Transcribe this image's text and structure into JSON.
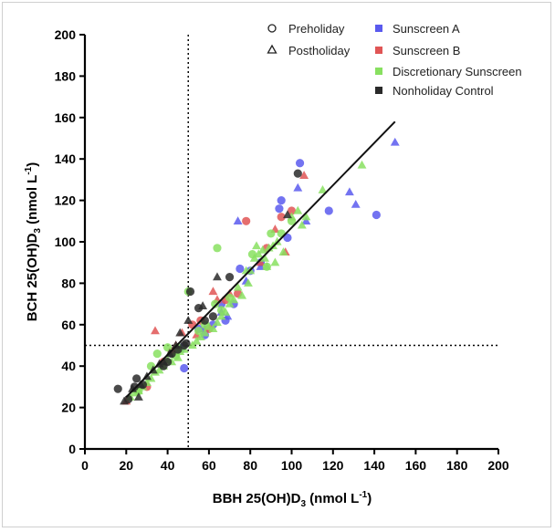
{
  "chart_data": {
    "type": "scatter",
    "xlabel_main": "BBH 25(OH)D",
    "xlabel_sub": "3",
    "xlabel_tail": " (nmol L",
    "xlabel_sup": "-1",
    "xlabel_end": ")",
    "ylabel_main": "BCH 25(OH)D",
    "ylabel_sub": "3",
    "ylabel_tail": " (nmol L",
    "ylabel_sup": "-1",
    "ylabel_end": ")",
    "xlim": [
      0,
      200
    ],
    "ylim": [
      0,
      200
    ],
    "xticks": [
      0,
      20,
      40,
      60,
      80,
      100,
      120,
      140,
      160,
      180,
      200
    ],
    "yticks": [
      0,
      20,
      40,
      60,
      80,
      100,
      120,
      140,
      160,
      180,
      200
    ],
    "grid": false,
    "legend_position": "top-right",
    "legend_shapes": [
      {
        "label": "Preholiday",
        "marker": "circle"
      },
      {
        "label": "Postholiday",
        "marker": "triangle"
      }
    ],
    "reference_lines": {
      "x": 50,
      "y": 50
    },
    "fit_line": {
      "x": [
        20,
        150
      ],
      "y": [
        25,
        158
      ]
    },
    "series": [
      {
        "name": "Sunscreen A",
        "color": "#5a5aee",
        "pre": [
          [
            48,
            39
          ],
          [
            58,
            55
          ],
          [
            72,
            70
          ],
          [
            75,
            87
          ],
          [
            80,
            86
          ],
          [
            95,
            120
          ],
          [
            104,
            138
          ],
          [
            118,
            115
          ],
          [
            141,
            113
          ],
          [
            94,
            116
          ],
          [
            68,
            62
          ],
          [
            62,
            60
          ],
          [
            55,
            58
          ],
          [
            47,
            49
          ],
          [
            66,
            70
          ],
          [
            85,
            90
          ],
          [
            98,
            102
          ]
        ],
        "post": [
          [
            150,
            148
          ],
          [
            128,
            124
          ],
          [
            131,
            118
          ],
          [
            103,
            126
          ],
          [
            107,
            110
          ],
          [
            74,
            110
          ],
          [
            78,
            81
          ],
          [
            66,
            66
          ],
          [
            58,
            58
          ],
          [
            46,
            48
          ],
          [
            85,
            88
          ],
          [
            69,
            64
          ]
        ]
      },
      {
        "name": "Sunscreen B",
        "color": "#e05555",
        "pre": [
          [
            78,
            110
          ],
          [
            100,
            115
          ],
          [
            95,
            112
          ],
          [
            60,
            58
          ],
          [
            42,
            47
          ],
          [
            38,
            42
          ],
          [
            52,
            60
          ],
          [
            68,
            72
          ],
          [
            88,
            97
          ],
          [
            30,
            30
          ],
          [
            56,
            62
          ],
          [
            74,
            75
          ]
        ],
        "post": [
          [
            34,
            57
          ],
          [
            47,
            56
          ],
          [
            106,
            132
          ],
          [
            97,
            95
          ],
          [
            92,
            106
          ],
          [
            70,
            75
          ],
          [
            62,
            76
          ],
          [
            44,
            50
          ],
          [
            38,
            42
          ],
          [
            85,
            90
          ],
          [
            64,
            72
          ],
          [
            54,
            55
          ],
          [
            20,
            23
          ]
        ]
      },
      {
        "name": "Discretionary Sunscreen",
        "color": "#88e060",
        "pre": [
          [
            64,
            97
          ],
          [
            50,
            76
          ],
          [
            88,
            88
          ],
          [
            81,
            94
          ],
          [
            100,
            110
          ],
          [
            35,
            46
          ],
          [
            45,
            49
          ],
          [
            55,
            57
          ],
          [
            66,
            67
          ],
          [
            58,
            60
          ],
          [
            44,
            45
          ],
          [
            70,
            73
          ],
          [
            63,
            70
          ],
          [
            90,
            104
          ],
          [
            32,
            40
          ],
          [
            26,
            28
          ],
          [
            40,
            49
          ],
          [
            95,
            104
          ]
        ],
        "post": [
          [
            134,
            137
          ],
          [
            115,
            125
          ],
          [
            107,
            112
          ],
          [
            103,
            115
          ],
          [
            96,
            95
          ],
          [
            93,
            100
          ],
          [
            89,
            97
          ],
          [
            86,
            96
          ],
          [
            84,
            94
          ],
          [
            82,
            92
          ],
          [
            80,
            86
          ],
          [
            79,
            80
          ],
          [
            76,
            74
          ],
          [
            74,
            78
          ],
          [
            72,
            72
          ],
          [
            70,
            70
          ],
          [
            68,
            66
          ],
          [
            66,
            64
          ],
          [
            64,
            61
          ],
          [
            62,
            58
          ],
          [
            60,
            59
          ],
          [
            58,
            56
          ],
          [
            56,
            54
          ],
          [
            54,
            52
          ],
          [
            52,
            50
          ],
          [
            48,
            48
          ],
          [
            46,
            47
          ],
          [
            45,
            44
          ],
          [
            42,
            42
          ],
          [
            40,
            43
          ],
          [
            38,
            40
          ],
          [
            36,
            38
          ],
          [
            34,
            37
          ],
          [
            32,
            34
          ],
          [
            30,
            32
          ],
          [
            28,
            30
          ],
          [
            26,
            28
          ],
          [
            24,
            27
          ],
          [
            22,
            25
          ],
          [
            87,
            92
          ],
          [
            91,
            98
          ],
          [
            100,
            112
          ],
          [
            105,
            108
          ],
          [
            83,
            98
          ],
          [
            78,
            86
          ],
          [
            92,
            90
          ],
          [
            88,
            88
          ]
        ]
      },
      {
        "name": "Nonholiday Control",
        "color": "#2a2a2a",
        "pre": [
          [
            103,
            133
          ],
          [
            51,
            76
          ],
          [
            70,
            83
          ],
          [
            55,
            68
          ],
          [
            49,
            51
          ],
          [
            45,
            48
          ],
          [
            42,
            46
          ],
          [
            25,
            34
          ],
          [
            16,
            29
          ],
          [
            21,
            24
          ],
          [
            62,
            64
          ],
          [
            38,
            40
          ],
          [
            28,
            31
          ],
          [
            24,
            30
          ],
          [
            40,
            42
          ],
          [
            48,
            50
          ],
          [
            58,
            62
          ]
        ],
        "post": [
          [
            98,
            113
          ],
          [
            64,
            83
          ],
          [
            57,
            69
          ],
          [
            50,
            62
          ],
          [
            46,
            56
          ],
          [
            44,
            50
          ],
          [
            41,
            46
          ],
          [
            38,
            42
          ],
          [
            36,
            41
          ],
          [
            33,
            38
          ],
          [
            30,
            35
          ],
          [
            27,
            31
          ],
          [
            23,
            29
          ],
          [
            19,
            23
          ],
          [
            26,
            25
          ]
        ]
      }
    ]
  }
}
